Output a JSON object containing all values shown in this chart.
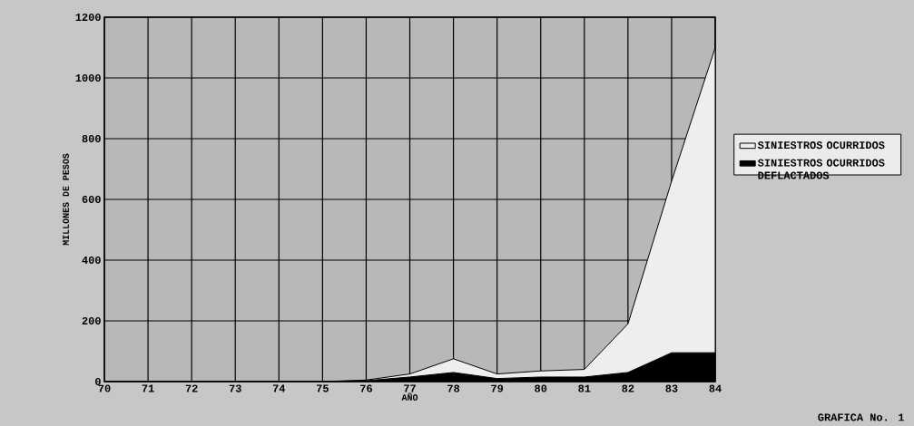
{
  "chart_data": {
    "type": "area",
    "xlabel": "AÑO",
    "ylabel": "MILLONES DE PESOS",
    "x": [
      70,
      71,
      72,
      73,
      74,
      75,
      76,
      77,
      78,
      79,
      80,
      81,
      82,
      83,
      84
    ],
    "series": [
      {
        "name": "SINIESTROS OCURRIDOS",
        "color": "#eeeeee",
        "values": [
          0,
          0,
          0,
          0,
          0,
          0,
          5,
          25,
          75,
          25,
          35,
          40,
          190,
          660,
          1100
        ]
      },
      {
        "name": "SINIESTROS OCURRIDOS DEFLACTADOS",
        "color": "#000000",
        "values": [
          0,
          0,
          0,
          0,
          0,
          0,
          3,
          15,
          30,
          10,
          15,
          15,
          30,
          95,
          95
        ]
      }
    ],
    "xlim": [
      70,
      84
    ],
    "xticks": [
      70,
      71,
      72,
      73,
      74,
      75,
      76,
      77,
      78,
      79,
      80,
      81,
      82,
      83,
      84
    ],
    "ylim": [
      0,
      1200
    ],
    "yticks": [
      0,
      200,
      400,
      600,
      800,
      1000,
      1200
    ],
    "grid": true,
    "legend": "right",
    "marker": "none",
    "annotations": [
      "GRAFICA No. 1"
    ]
  }
}
